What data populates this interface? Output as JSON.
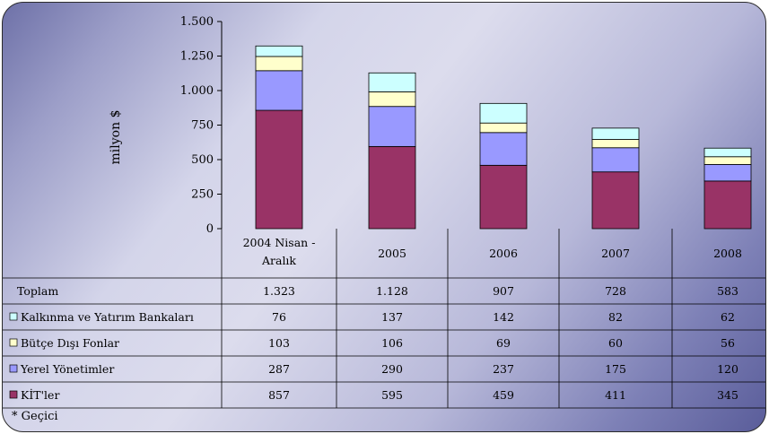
{
  "colors": {
    "kitler": "#993366",
    "yerel": "#9999ff",
    "butce": "#ffffcc",
    "kalkinma": "#ccffff",
    "grid": "#000000"
  },
  "chart_data": {
    "type": "bar",
    "stacked": true,
    "categories": [
      "2004 Nisan - Aralık",
      "2005",
      "2006",
      "2007",
      "2008"
    ],
    "category_display": [
      "2004 Nisan -",
      "Aralık",
      "2005",
      "2006",
      "2007",
      "2008"
    ],
    "ylabel": "milyon $",
    "ylim": [
      0,
      1500
    ],
    "yticks": [
      0,
      250,
      500,
      750,
      1000,
      1250,
      1500
    ],
    "ytick_labels": [
      "0",
      "250",
      "500",
      "750",
      "1.000",
      "1.250",
      "1.500"
    ],
    "series": [
      {
        "name": "KİT'ler",
        "values": [
          857,
          595,
          459,
          411,
          345
        ]
      },
      {
        "name": "Yerel Yönetimler",
        "values": [
          287,
          290,
          237,
          175,
          120
        ]
      },
      {
        "name": "Bütçe Dışı Fonlar",
        "values": [
          103,
          106,
          69,
          60,
          56
        ]
      },
      {
        "name": "Kalkınma ve Yatırım Bankaları",
        "values": [
          76,
          137,
          142,
          82,
          62
        ]
      }
    ],
    "total": {
      "name": "Toplam",
      "values": [
        1323,
        1128,
        907,
        728,
        583
      ]
    },
    "legend": "data-table"
  },
  "table": {
    "rows": [
      {
        "label": "Toplam",
        "values": [
          "1.323",
          "1.128",
          "907",
          "728",
          "583"
        ]
      },
      {
        "label": "Kalkınma ve Yatırım Bankaları",
        "values": [
          "76",
          "137",
          "142",
          "82",
          "62"
        ]
      },
      {
        "label": "Bütçe Dışı Fonlar",
        "values": [
          "103",
          "106",
          "69",
          "60",
          "56"
        ]
      },
      {
        "label": "Yerel Yönetimler",
        "values": [
          "287",
          "290",
          "237",
          "175",
          "120"
        ]
      },
      {
        "label": "KİT'ler",
        "values": [
          "857",
          "595",
          "459",
          "411",
          "345"
        ]
      }
    ]
  },
  "footnote": "* Geçici"
}
